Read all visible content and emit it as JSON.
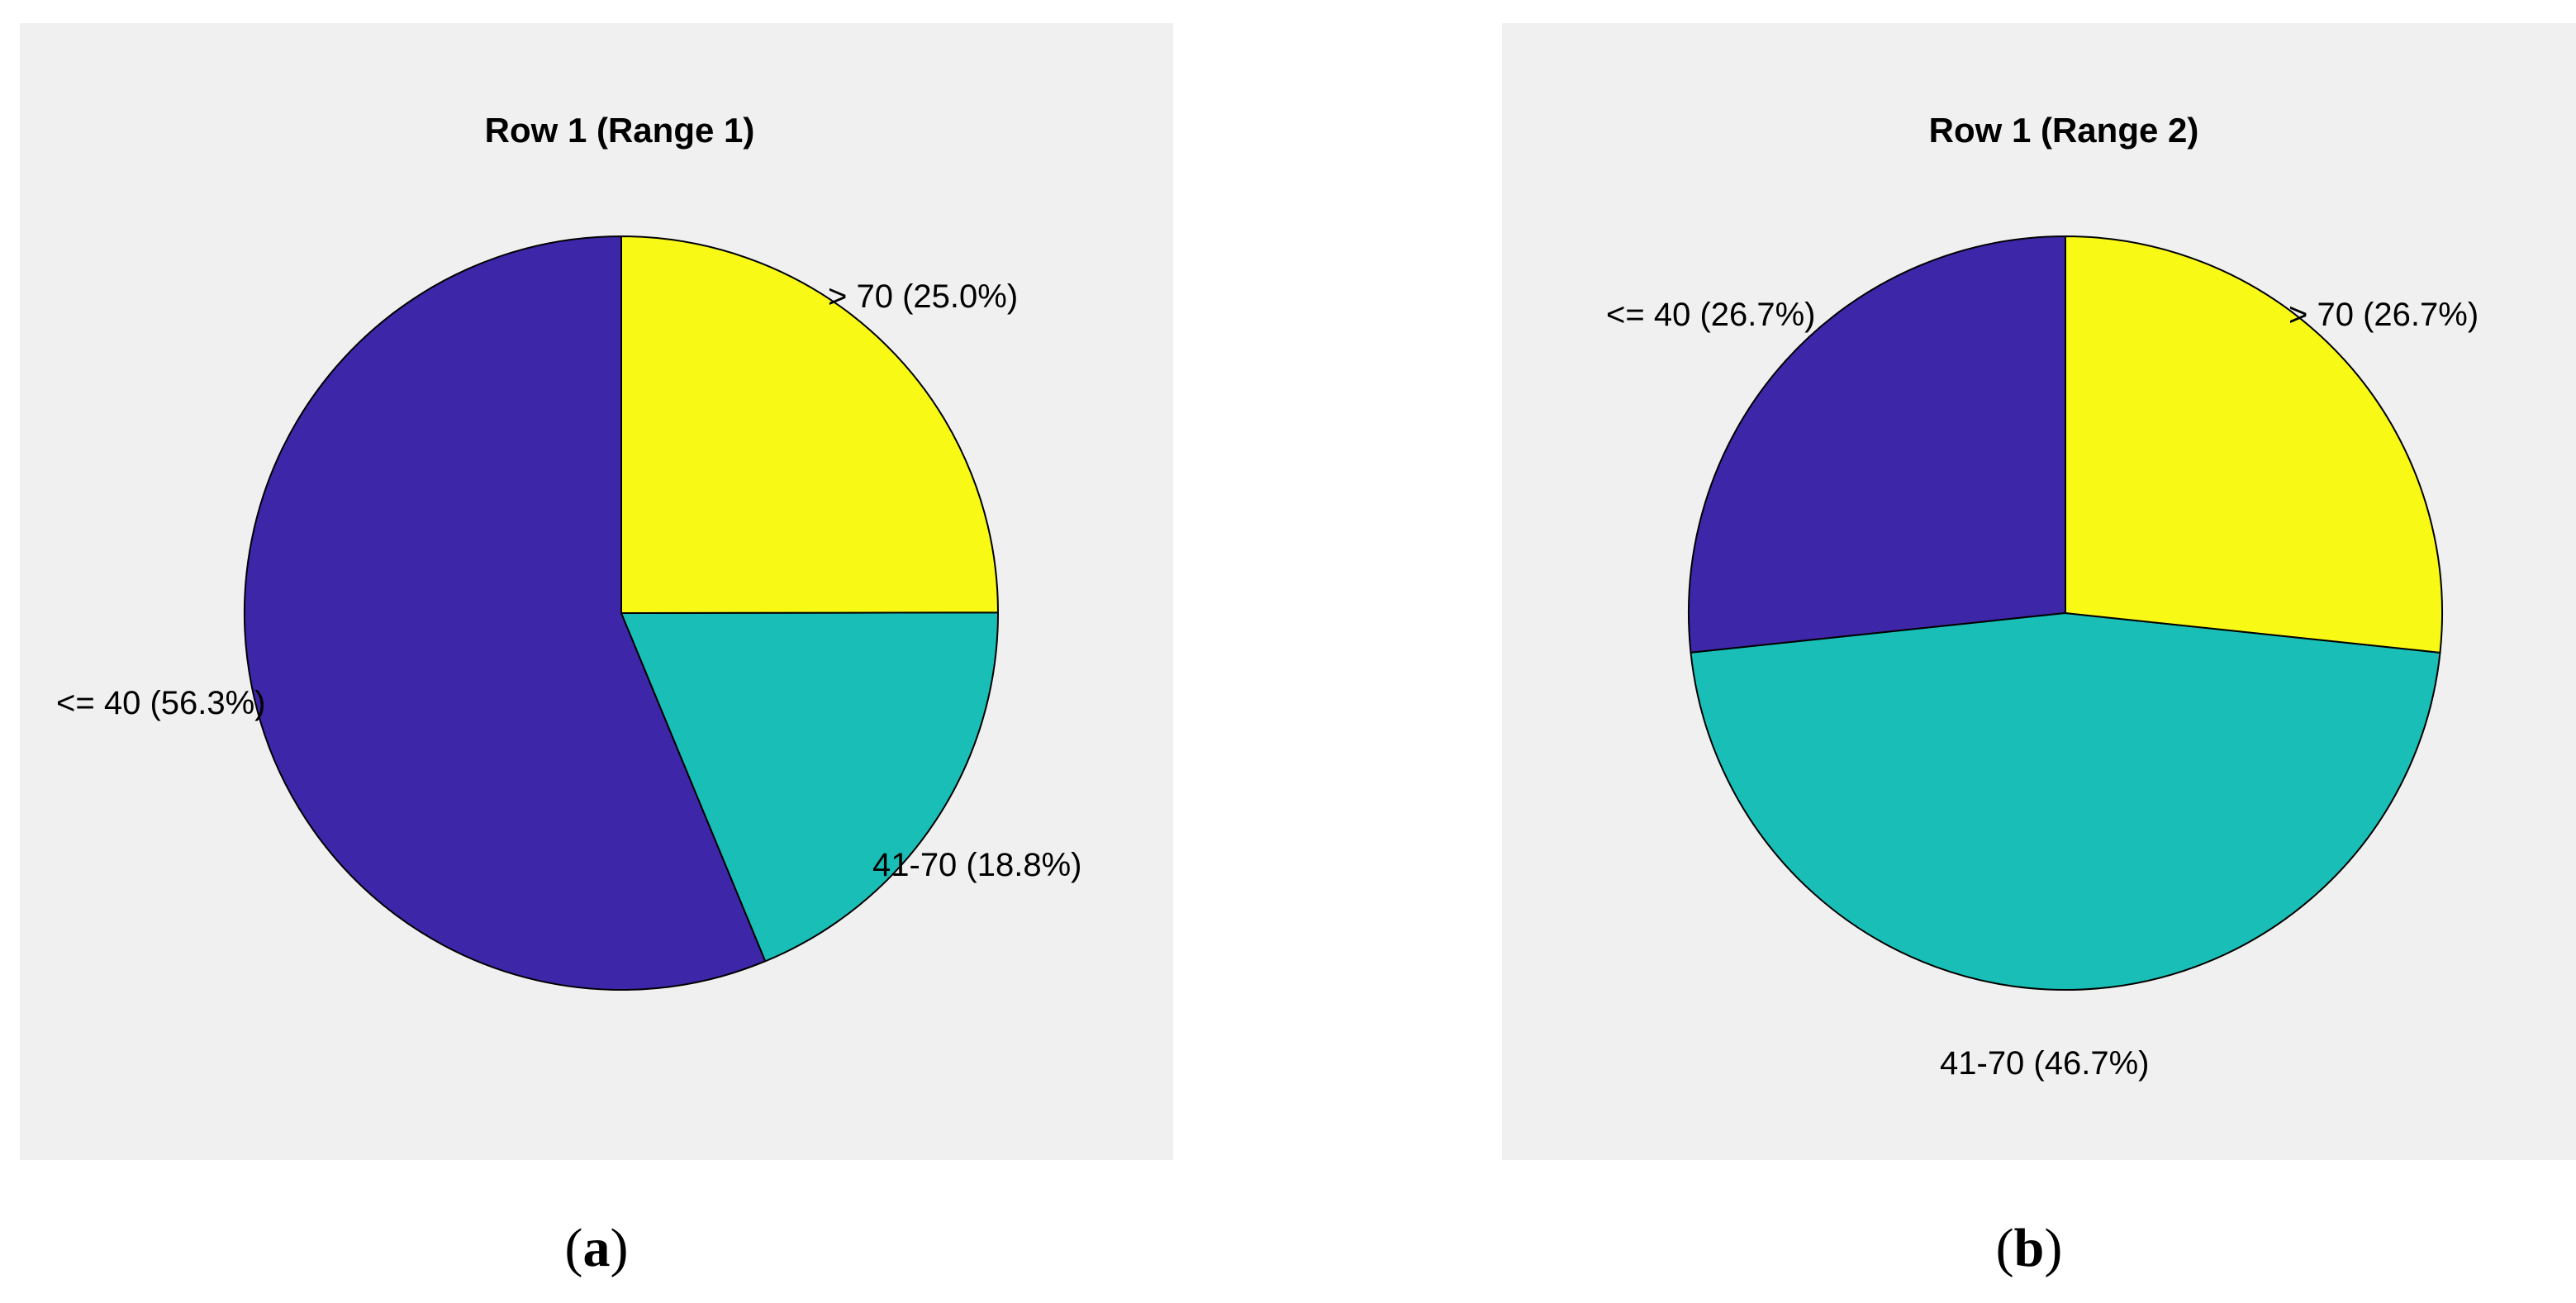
{
  "chart_data": [
    {
      "type": "pie",
      "title": "Row 1 (Range 1)",
      "slices": [
        {
          "label": "<= 40 (56.3%)",
          "value": 56.3,
          "color": "#3e26a8"
        },
        {
          "label": "41-70 (18.8%)",
          "value": 18.8,
          "color": "#19bfb7"
        },
        {
          "label": "> 70 (25.0%)",
          "value": 25.0,
          "color": "#f8fa15"
        }
      ]
    },
    {
      "type": "pie",
      "title": "Row 1 (Range 2)",
      "slices": [
        {
          "label": "<= 40 (26.7%)",
          "value": 26.7,
          "color": "#3e26a8"
        },
        {
          "label": "41-70 (46.7%)",
          "value": 46.7,
          "color": "#19bfb7"
        },
        {
          "label": "> 70 (26.7%)",
          "value": 26.7,
          "color": "#f8fa15"
        }
      ]
    }
  ],
  "captions": [
    {
      "open": "(",
      "letter": "a",
      "close": ")"
    },
    {
      "open": "(",
      "letter": "b",
      "close": ")"
    }
  ]
}
